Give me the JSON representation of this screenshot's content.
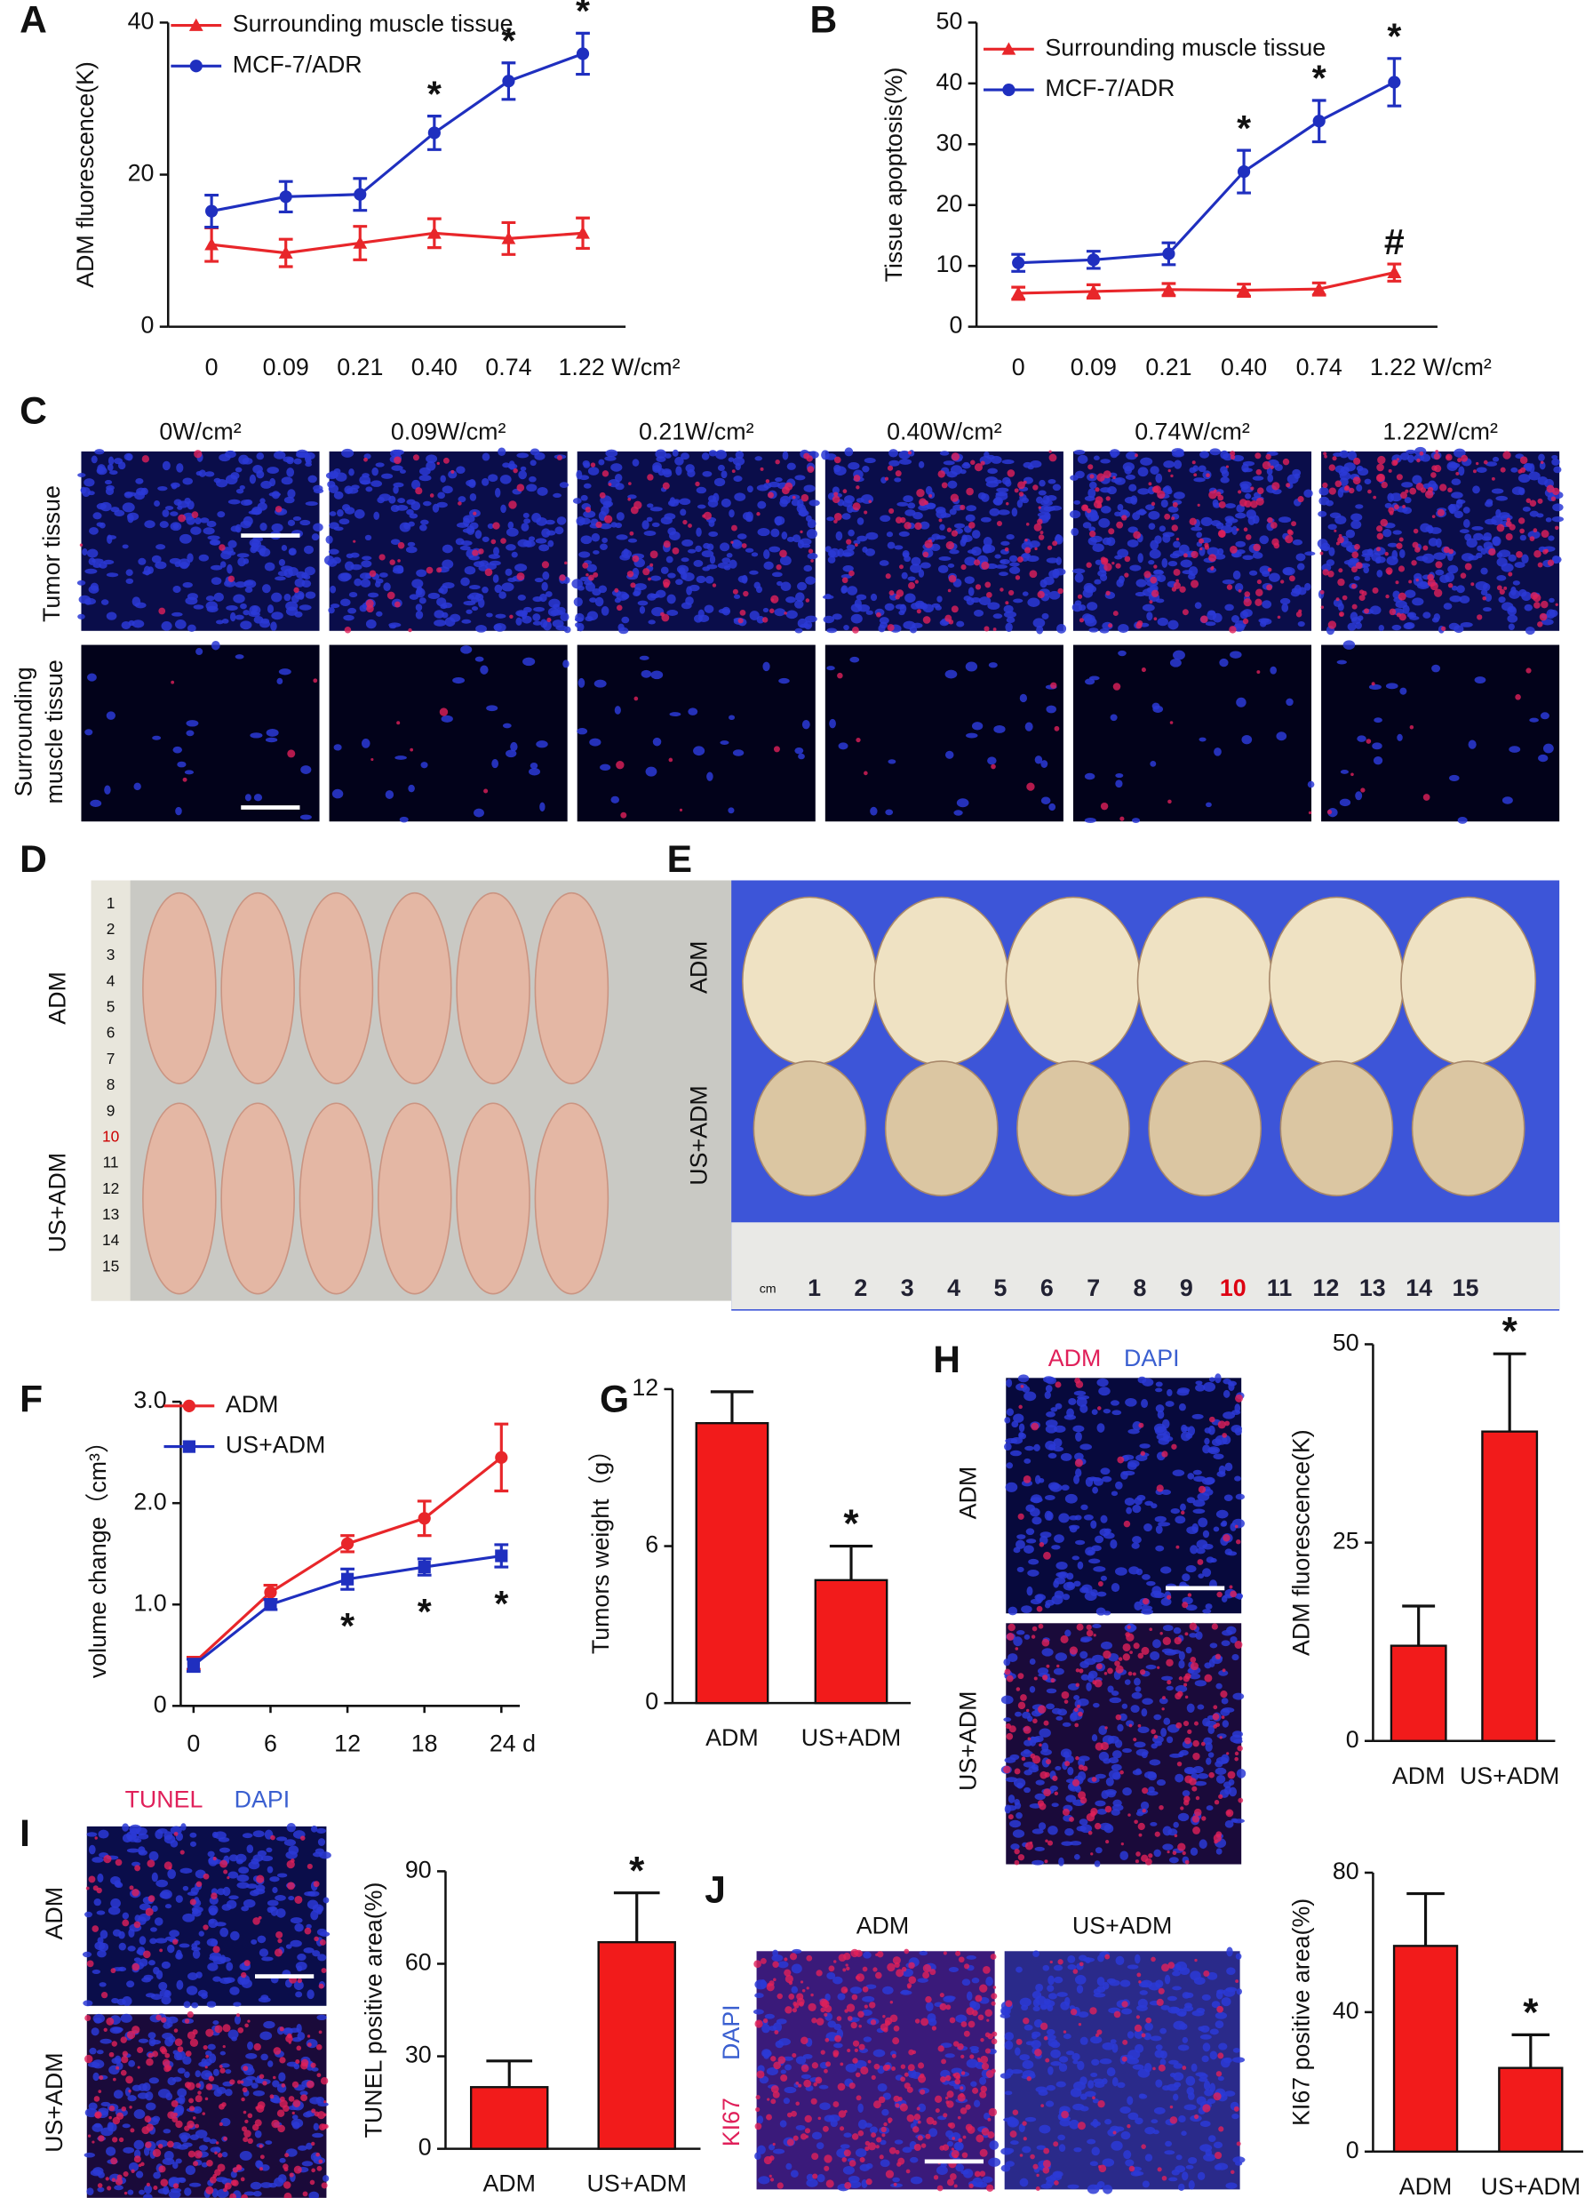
{
  "chart_data": [
    {
      "type": "line",
      "panel_label": "A",
      "y_label": "ADM fluorescence(K)",
      "categories": [
        "0",
        "0.09",
        "0.21",
        "0.40",
        "0.74",
        "1.22 W/cm²"
      ],
      "ylim": [
        0,
        40
      ],
      "yticks": [
        0,
        20,
        40
      ],
      "series": [
        {
          "name": "Surrounding muscle tissue",
          "color": "#e8262a",
          "marker": "triangle",
          "values": [
            10.8,
            9.7,
            11,
            12.3,
            11.6,
            12.3
          ],
          "errors": [
            2.2,
            1.8,
            2.2,
            1.9,
            2.1,
            2
          ]
        },
        {
          "name": "MCF-7/ADR",
          "color": "#1f2fbf",
          "marker": "circle",
          "values": [
            15.2,
            17.1,
            17.4,
            25.5,
            32.3,
            35.9
          ],
          "errors": [
            2.1,
            2,
            2.1,
            2.2,
            2.4,
            2.7
          ],
          "significance": [
            null,
            null,
            null,
            "*",
            "*",
            "*"
          ]
        }
      ]
    },
    {
      "type": "line",
      "panel_label": "B",
      "y_label": "Tissue apoptosis(%)",
      "categories": [
        "0",
        "0.09",
        "0.21",
        "0.40",
        "0.74",
        "1.22 W/cm²"
      ],
      "ylim": [
        0,
        50
      ],
      "yticks": [
        0,
        10,
        20,
        30,
        40,
        50
      ],
      "series": [
        {
          "name": "Surrounding muscle tissue",
          "color": "#e8262a",
          "marker": "triangle",
          "values": [
            5.5,
            5.8,
            6.1,
            6,
            6.2,
            8.9
          ],
          "errors": [
            1,
            1.1,
            1,
            1,
            1,
            1.4
          ],
          "significance": [
            null,
            null,
            null,
            null,
            null,
            "#"
          ]
        },
        {
          "name": "MCF-7/ADR",
          "color": "#1f2fbf",
          "marker": "circle",
          "values": [
            10.5,
            11,
            12,
            25.5,
            33.8,
            40.2
          ],
          "errors": [
            1.4,
            1.4,
            1.8,
            3.5,
            3.4,
            3.9
          ],
          "significance": [
            null,
            null,
            null,
            "*",
            "*",
            "*"
          ]
        }
      ]
    },
    {
      "type": "line",
      "panel_label": "F",
      "y_label": "volume change（cm³）",
      "x": [
        0,
        6,
        12,
        18,
        24
      ],
      "xlim": [
        -1,
        25
      ],
      "xticks": [
        0,
        6,
        12,
        18,
        {
          "value": 24,
          "label": "24 d"
        }
      ],
      "ylim": [
        0,
        3
      ],
      "yticks": [
        0,
        {
          "value": 1,
          "label": "1.0"
        },
        {
          "value": 2,
          "label": "2.0"
        },
        {
          "value": 3,
          "label": "3.0"
        }
      ],
      "series": [
        {
          "name": "ADM",
          "color": "#e8262a",
          "marker": "circle",
          "values": [
            0.42,
            1.12,
            1.6,
            1.85,
            2.45
          ],
          "errors": [
            0.06,
            0.07,
            0.08,
            0.17,
            0.33
          ]
        },
        {
          "name": "US+ADM",
          "color": "#1f2fbf",
          "marker": "square",
          "values": [
            0.4,
            1,
            1.25,
            1.37,
            1.48
          ],
          "errors": [
            0.06,
            0.05,
            0.1,
            0.08,
            0.11
          ],
          "significance": [
            null,
            null,
            "*",
            "*",
            "*"
          ]
        }
      ]
    },
    {
      "type": "bar",
      "panel_label": "G",
      "y_label": "Tumors weight（g）",
      "categories": [
        "ADM",
        "US+ADM"
      ],
      "values": [
        10.7,
        4.7
      ],
      "errors": [
        1.2,
        1.3
      ],
      "significance": [
        null,
        "*"
      ],
      "color": "#f21b1b",
      "ylim": [
        0,
        12
      ],
      "yticks": [
        0,
        6,
        12
      ]
    },
    {
      "type": "bar",
      "panel_label": "H",
      "y_label": "ADM fluorescence(K)",
      "categories": [
        "ADM",
        "US+ADM"
      ],
      "values": [
        12,
        39
      ],
      "errors": [
        5,
        9.8
      ],
      "significance": [
        null,
        "*"
      ],
      "color": "#f21b1b",
      "ylim": [
        0,
        50
      ],
      "yticks": [
        0,
        25,
        50
      ]
    },
    {
      "type": "bar",
      "panel_label": "I",
      "y_label": "TUNEL positive area(%)",
      "categories": [
        "ADM",
        "US+ADM"
      ],
      "values": [
        20,
        67
      ],
      "errors": [
        8.5,
        16
      ],
      "significance": [
        null,
        "*"
      ],
      "color": "#f21b1b",
      "ylim": [
        0,
        90
      ],
      "yticks": [
        0,
        30,
        60,
        90
      ]
    },
    {
      "type": "bar",
      "panel_label": "J",
      "y_label": "KI67 positive area(%)",
      "categories": [
        "ADM",
        "US+ADM"
      ],
      "values": [
        59,
        24
      ],
      "errors": [
        15,
        9.5
      ],
      "significance": [
        null,
        "*"
      ],
      "color": "#f21b1b",
      "ylim": [
        0,
        80
      ],
      "yticks": [
        0,
        40,
        80
      ]
    }
  ],
  "figure": {
    "c": {
      "label": "C",
      "columns": [
        "0W/cm²",
        "0.09W/cm²",
        "0.21W/cm²",
        "0.40W/cm²",
        "0.74W/cm²",
        "1.22W/cm²"
      ],
      "rows": [
        [
          "Tumor tissue"
        ],
        [
          "Surrounding",
          "muscle tissue"
        ]
      ]
    },
    "d": {
      "label": "D",
      "rows": [
        "ADM",
        "US+ADM"
      ],
      "ruler": [
        "1",
        "2",
        "3",
        "4",
        "5",
        "6",
        "7",
        "8",
        "9",
        "10",
        "11",
        "12",
        "13",
        "14",
        "15"
      ]
    },
    "e": {
      "label": "E",
      "rows": [
        "ADM",
        "US+ADM"
      ],
      "ruler": [
        "cm",
        "1",
        "2",
        "3",
        "4",
        "5",
        "6",
        "7",
        "8",
        "9",
        "10",
        "11",
        "12",
        "13",
        "14",
        "15"
      ]
    },
    "h": {
      "stains": [
        "ADM",
        "DAPI"
      ],
      "rows": [
        "ADM",
        "US+ADM"
      ]
    },
    "i": {
      "stains": [
        "TUNEL",
        "DAPI"
      ],
      "rows": [
        "ADM",
        "US+ADM"
      ]
    },
    "j": {
      "columns": [
        "ADM",
        "US+ADM"
      ],
      "stains": [
        "KI67",
        "DAPI"
      ]
    }
  }
}
